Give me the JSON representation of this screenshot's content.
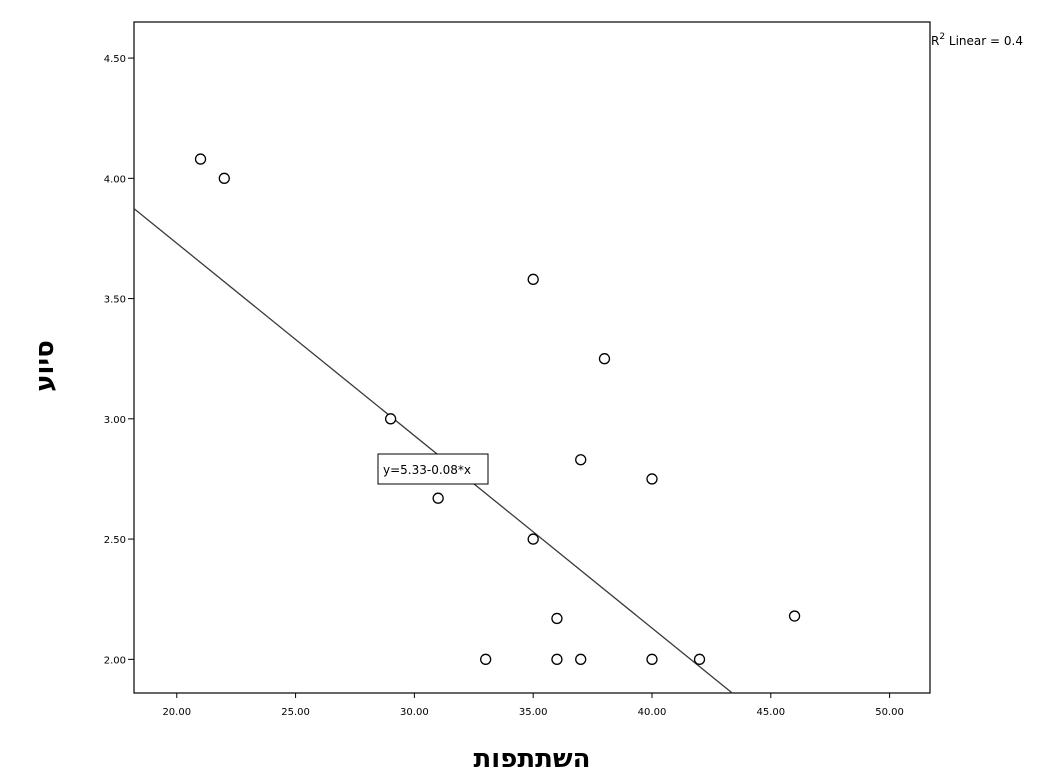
{
  "chart_data": {
    "type": "scatter",
    "xlabel": "השתתפות",
    "ylabel": "סיוע",
    "xlim": [
      18.2,
      51.7
    ],
    "ylim": [
      1.86,
      4.65
    ],
    "xticks": [
      "20.00",
      "25.00",
      "30.00",
      "35.00",
      "40.00",
      "45.00",
      "50.00"
    ],
    "yticks": [
      "2.00",
      "2.50",
      "3.00",
      "3.50",
      "4.00",
      "4.50"
    ],
    "xtick_values": [
      20,
      25,
      30,
      35,
      40,
      45,
      50
    ],
    "ytick_values": [
      2.0,
      2.5,
      3.0,
      3.5,
      4.0,
      4.5
    ],
    "points": [
      {
        "x": 21,
        "y": 4.08
      },
      {
        "x": 22,
        "y": 4.0
      },
      {
        "x": 29,
        "y": 3.0
      },
      {
        "x": 31,
        "y": 2.67
      },
      {
        "x": 33,
        "y": 2.0
      },
      {
        "x": 35,
        "y": 3.58
      },
      {
        "x": 35,
        "y": 2.5
      },
      {
        "x": 36,
        "y": 2.17
      },
      {
        "x": 36,
        "y": 2.0
      },
      {
        "x": 37,
        "y": 2.83
      },
      {
        "x": 37,
        "y": 2.0
      },
      {
        "x": 38,
        "y": 3.25
      },
      {
        "x": 40,
        "y": 2.75
      },
      {
        "x": 40,
        "y": 2.0
      },
      {
        "x": 42,
        "y": 2.0
      },
      {
        "x": 46,
        "y": 2.18
      }
    ],
    "fit_line": {
      "intercept": 5.33,
      "slope": -0.08
    },
    "equation_label": "y=5.33-0.08*x",
    "r2_label_prefix": "R",
    "r2_label_sup": "2",
    "r2_label_rest": " Linear = 0.4",
    "grid": false
  }
}
